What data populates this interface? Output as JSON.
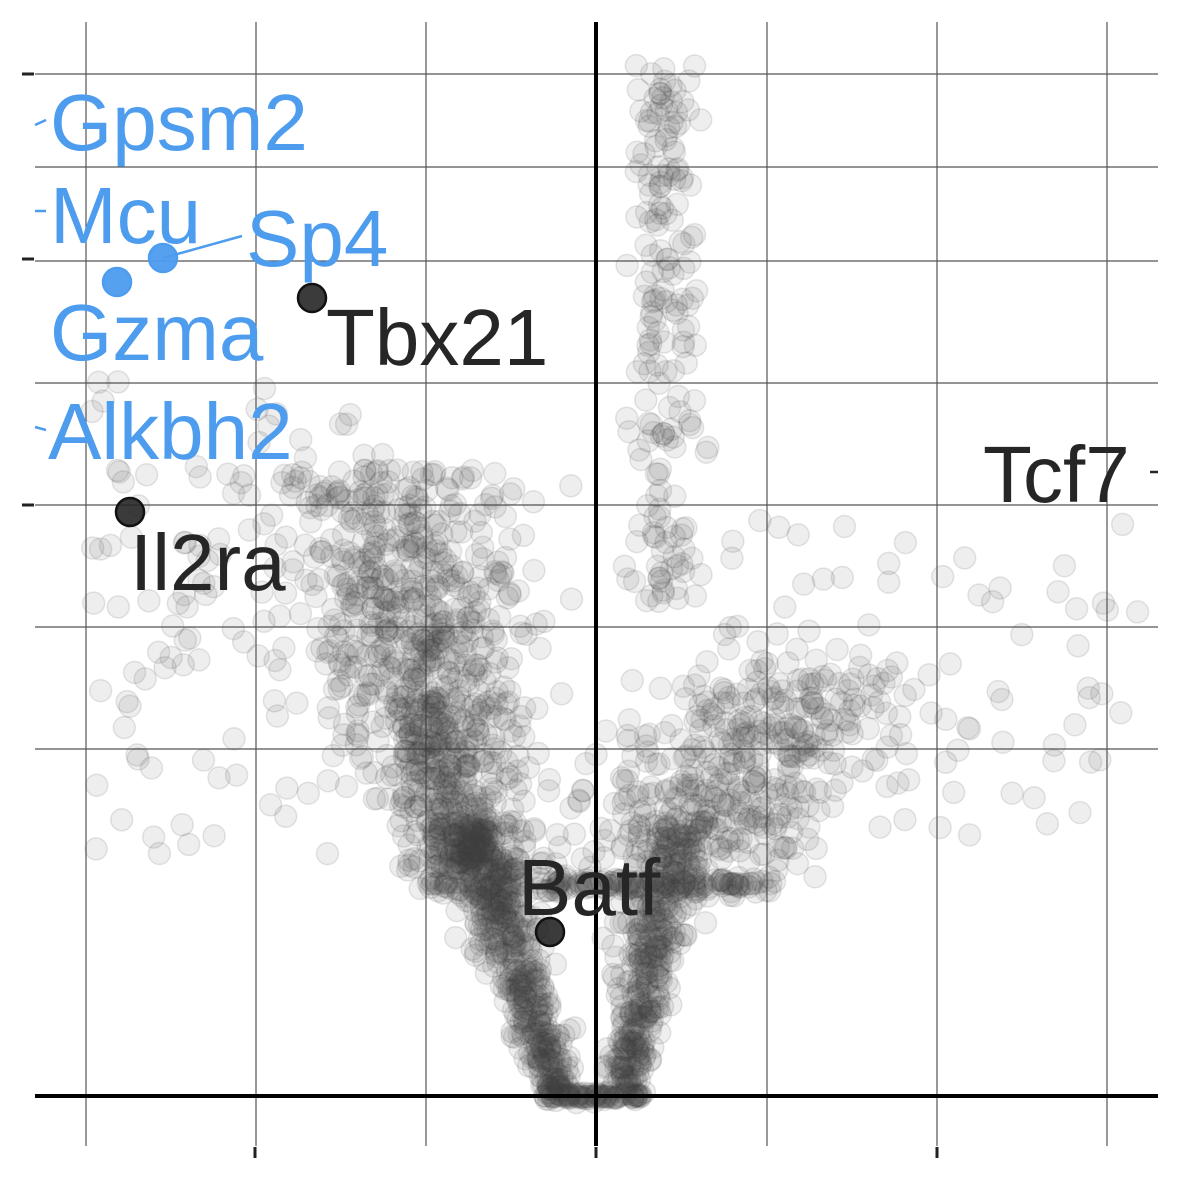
{
  "chart_data": {
    "type": "scatter",
    "title": "",
    "xlabel": "",
    "ylabel": "",
    "xlim": [
      -3.3,
      3.3
    ],
    "ylim": [
      0,
      8.6
    ],
    "x_ticks": [
      -2,
      0,
      2
    ],
    "y_ticks": [
      4.8,
      6.8,
      8.3
    ],
    "grid": true,
    "highlight_color": "#4d9cee",
    "label_color": "#262626",
    "point_color": "#404040",
    "highlighted_genes": [
      {
        "name": "Gpsm2",
        "x": -3.3,
        "y": 8.0,
        "color": "#4d9cee"
      },
      {
        "name": "Mcu",
        "x": -3.3,
        "y": 7.3,
        "color": "#4d9cee"
      },
      {
        "name": "Sp4",
        "x": -2.55,
        "y": 6.88,
        "color": "#4d9cee"
      },
      {
        "name": "Gzma",
        "x": -2.82,
        "y": 6.7,
        "color": "#4d9cee"
      },
      {
        "name": "Alkbh2",
        "x": -3.3,
        "y": 5.5,
        "color": "#4d9cee"
      },
      {
        "name": "Tbx21",
        "x": -1.67,
        "y": 6.4,
        "color": "#262626"
      },
      {
        "name": "Il2ra",
        "x": -2.74,
        "y": 4.6,
        "color": "#262626"
      },
      {
        "name": "Batf",
        "x": -0.27,
        "y": 1.34,
        "color": "#262626"
      },
      {
        "name": "Tcf7",
        "x": 3.3,
        "y": 4.8,
        "color": "#262626"
      }
    ],
    "background_points_note": ""
  }
}
